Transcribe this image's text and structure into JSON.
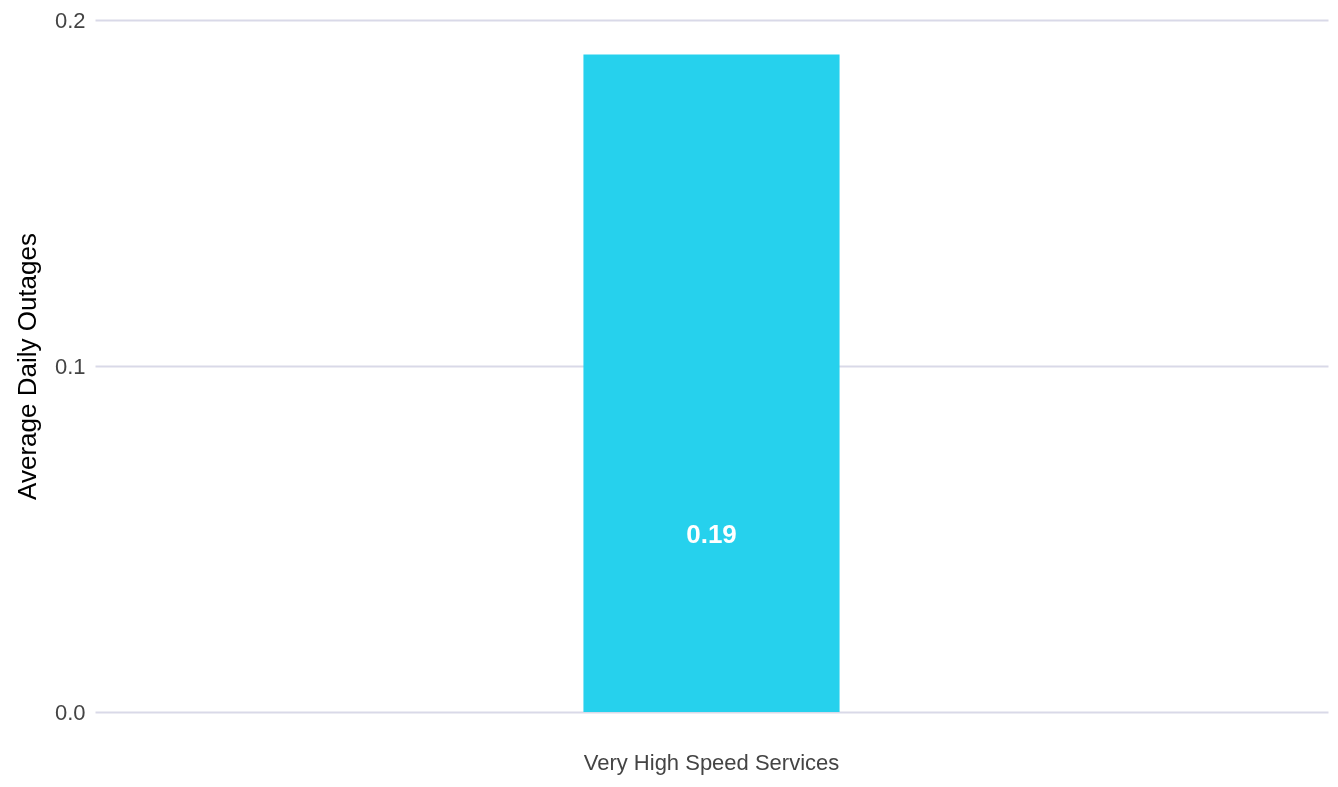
{
  "chart_data": {
    "type": "bar",
    "ylabel": "Average Daily Outages",
    "categories": [
      "Very High Speed Services"
    ],
    "values": [
      0.19
    ],
    "color": "#26d1ed",
    "ylim": [
      0,
      0.2
    ],
    "yticks": [
      {
        "value": 0,
        "label": "0.0"
      },
      0.1,
      0.2
    ],
    "grid": "y",
    "data_labels": true
  }
}
